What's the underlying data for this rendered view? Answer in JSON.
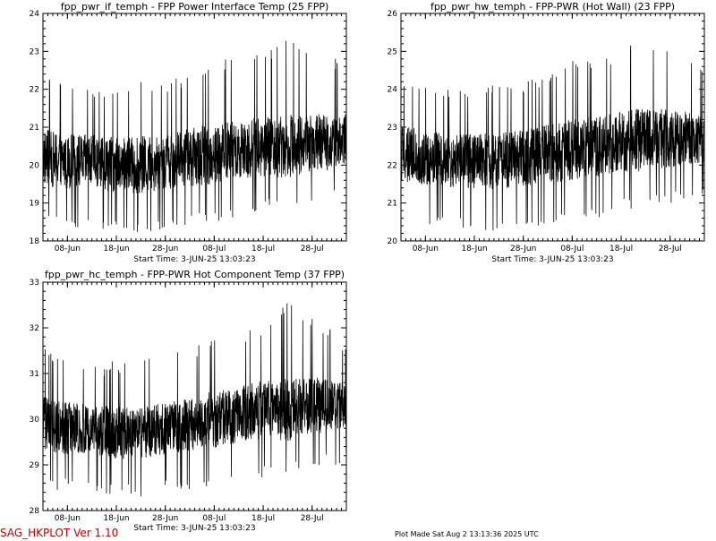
{
  "footer": {
    "program": "SAG_HKPLOT  Ver 1.10",
    "plot_made": "Plot Made Sat Aug  2 13:13:36 2025 UTC"
  },
  "colors": {
    "trace": "#000000",
    "program_label": "#c00000"
  },
  "chart_data": [
    {
      "type": "line",
      "title": "fpp_pwr_if_temph - FPP Power Interface Temp (25 FPP)",
      "start_time": "Start Time:  3-JUN-25  13:03:23",
      "ylim": [
        18,
        24
      ],
      "y_ticks": [
        18,
        19,
        20,
        21,
        22,
        23,
        24
      ],
      "x_range_days": [
        0,
        62
      ],
      "x_ticks": [
        {
          "label": "08-Jun",
          "day": 5
        },
        {
          "label": "18-Jun",
          "day": 15
        },
        {
          "label": "28-Jun",
          "day": 25
        },
        {
          "label": "08-Jul",
          "day": 35
        },
        {
          "label": "18-Jul",
          "day": 45
        },
        {
          "label": "28-Jul",
          "day": 55
        }
      ],
      "series": [
        {
          "x": [
            0,
            5,
            10,
            15,
            20,
            25,
            30,
            35,
            40,
            45,
            50,
            55,
            60,
            62
          ],
          "y_mean": [
            20.2,
            20.1,
            20.1,
            20.0,
            20.0,
            20.1,
            20.2,
            20.3,
            20.4,
            20.5,
            20.5,
            20.6,
            20.6,
            20.7
          ],
          "y_min": [
            18.5,
            18.4,
            18.3,
            18.3,
            18.2,
            18.3,
            18.4,
            18.5,
            18.6,
            18.8,
            18.9,
            19.0,
            19.1,
            19.2
          ],
          "y_max": [
            22.5,
            22.2,
            22.0,
            22.1,
            22.2,
            22.2,
            22.4,
            22.8,
            22.8,
            23.0,
            23.3,
            23.0,
            22.8,
            22.6
          ]
        }
      ]
    },
    {
      "type": "line",
      "title": "fpp_pwr_hw_temph - FPP-PWR (Hot Wall) (23 FPP)",
      "start_time": "Start Time:  3-JUN-25  13:03:23",
      "ylim": [
        20,
        26
      ],
      "y_ticks": [
        20,
        21,
        22,
        23,
        24,
        25,
        26
      ],
      "x_range_days": [
        0,
        62
      ],
      "x_ticks": [
        {
          "label": "08-Jun",
          "day": 5
        },
        {
          "label": "18-Jun",
          "day": 15
        },
        {
          "label": "28-Jun",
          "day": 25
        },
        {
          "label": "08-Jul",
          "day": 35
        },
        {
          "label": "18-Jul",
          "day": 45
        },
        {
          "label": "28-Jul",
          "day": 55
        }
      ],
      "series": [
        {
          "x": [
            0,
            5,
            10,
            15,
            20,
            25,
            30,
            35,
            40,
            45,
            50,
            55,
            60,
            62
          ],
          "y_mean": [
            22.3,
            22.2,
            22.1,
            22.1,
            22.1,
            22.2,
            22.3,
            22.4,
            22.5,
            22.6,
            22.7,
            22.7,
            22.7,
            22.7
          ],
          "y_min": [
            20.5,
            20.4,
            20.3,
            20.3,
            20.2,
            20.3,
            20.4,
            20.5,
            20.6,
            20.8,
            20.9,
            21.0,
            21.1,
            21.2
          ],
          "y_max": [
            24.4,
            24.2,
            24.0,
            24.1,
            24.2,
            24.2,
            24.4,
            24.8,
            24.8,
            25.0,
            25.4,
            25.0,
            24.8,
            24.6
          ]
        }
      ]
    },
    {
      "type": "line",
      "title": "fpp_pwr_hc_temph - FPP-PWR Hot Component Temp (37 FPP)",
      "start_time": "Start Time:  3-JUN-25  13:03:23",
      "ylim": [
        28,
        33
      ],
      "y_ticks": [
        28,
        29,
        30,
        31,
        32,
        33
      ],
      "x_range_days": [
        0,
        62
      ],
      "x_ticks": [
        {
          "label": "08-Jun",
          "day": 5
        },
        {
          "label": "18-Jun",
          "day": 15
        },
        {
          "label": "28-Jun",
          "day": 25
        },
        {
          "label": "08-Jul",
          "day": 35
        },
        {
          "label": "18-Jul",
          "day": 45
        },
        {
          "label": "28-Jul",
          "day": 55
        }
      ],
      "series": [
        {
          "x": [
            0,
            5,
            10,
            15,
            20,
            25,
            30,
            35,
            40,
            45,
            50,
            55,
            60,
            62
          ],
          "y_mean": [
            29.9,
            29.8,
            29.8,
            29.7,
            29.7,
            29.8,
            29.9,
            30.0,
            30.1,
            30.2,
            30.2,
            30.3,
            30.3,
            30.3
          ],
          "y_min": [
            28.5,
            28.4,
            28.3,
            28.3,
            28.3,
            28.4,
            28.4,
            28.5,
            28.6,
            28.7,
            28.8,
            28.9,
            29.0,
            29.0
          ],
          "y_max": [
            31.6,
            31.4,
            31.2,
            31.3,
            31.3,
            31.4,
            31.6,
            31.8,
            31.9,
            32.1,
            32.6,
            32.2,
            31.9,
            31.6
          ]
        }
      ]
    }
  ]
}
